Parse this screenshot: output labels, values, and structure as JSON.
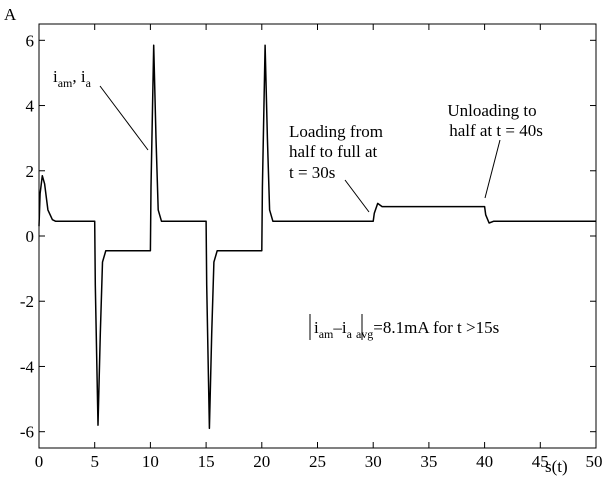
{
  "chart_data": {
    "type": "line",
    "title": "",
    "xlabel": "s(t)",
    "ylabel": "A",
    "xlim": [
      0,
      50
    ],
    "ylim": [
      -6.5,
      6.5
    ],
    "x_ticks": [
      0,
      5,
      10,
      15,
      20,
      25,
      30,
      35,
      40,
      45,
      50
    ],
    "y_ticks": [
      6,
      4,
      2,
      0,
      -2,
      -4,
      -6
    ],
    "grid": false,
    "series": [
      {
        "x": [
          0,
          0.1,
          0.3,
          0.5,
          0.8,
          1.2,
          1.5,
          2.0,
          5.0,
          5.05,
          5.3,
          5.5,
          5.7,
          6.0,
          6.5,
          10.0,
          10.05,
          10.3,
          10.5,
          10.7,
          11.0,
          11.5,
          15.0,
          15.05,
          15.3,
          15.5,
          15.7,
          16.0,
          16.5,
          20.0,
          20.05,
          20.3,
          20.5,
          20.7,
          21.0,
          21.5,
          30.0,
          30.1,
          30.4,
          30.8,
          40.0,
          40.1,
          40.4,
          40.8,
          50.0
        ],
        "y": [
          0.3,
          1.3,
          1.85,
          1.6,
          0.8,
          0.5,
          0.45,
          0.45,
          0.45,
          -1.5,
          -5.8,
          -3.0,
          -0.8,
          -0.45,
          -0.45,
          -0.45,
          1.5,
          5.85,
          3.0,
          0.8,
          0.45,
          0.45,
          0.45,
          -1.5,
          -5.9,
          -3.0,
          -0.8,
          -0.45,
          -0.45,
          -0.45,
          1.5,
          5.85,
          3.0,
          0.8,
          0.45,
          0.45,
          0.45,
          0.7,
          1.0,
          0.9,
          0.9,
          0.65,
          0.4,
          0.45,
          0.45
        ]
      }
    ],
    "annotations": {
      "series_label": {
        "main1": "i",
        "sub1": "am",
        "sep": ", ",
        "main2": "i",
        "sub2": "a"
      },
      "loading": [
        "Loading from",
        "half to full at",
        "t = 30s"
      ],
      "unloading": [
        "Unloading to",
        "half at  t = 40s"
      ],
      "error": {
        "main1": "i",
        "sub1": "am",
        "mid": "–i",
        "sub2": "a",
        "sub3": "avg",
        "value": "=8.1mA for  t >15s"
      }
    }
  }
}
